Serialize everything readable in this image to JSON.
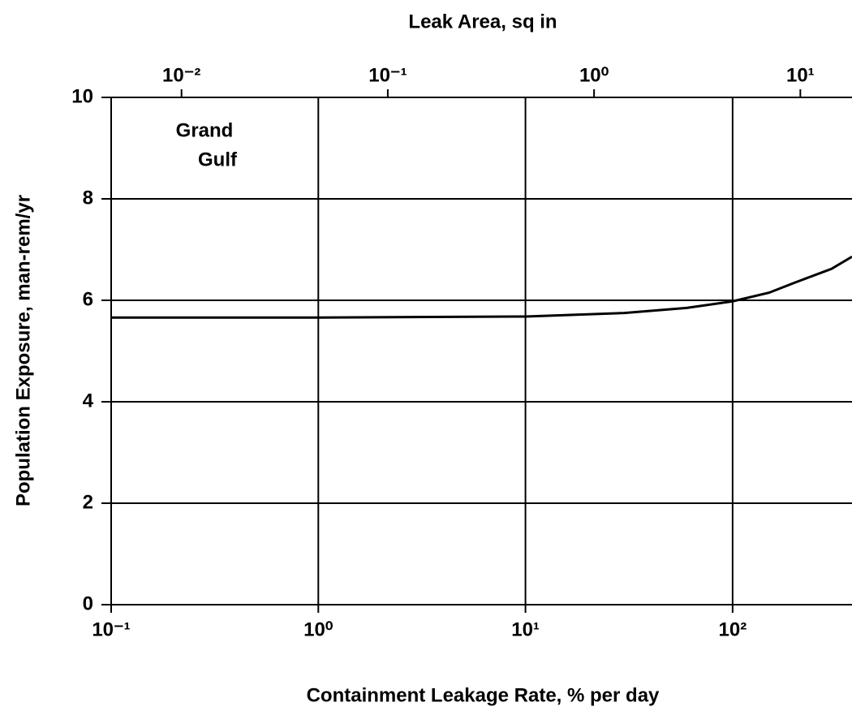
{
  "chart_data": {
    "type": "line",
    "title": "Leak Area, sq in",
    "xlabel": "Containment Leakage Rate, % per day",
    "ylabel": "Population Exposure, man-rem/yr",
    "annotation": [
      "Grand",
      "Gulf"
    ],
    "xscale": "log",
    "x": [
      0.1,
      1,
      10,
      30,
      60,
      100,
      150,
      200,
      300,
      377
    ],
    "series": [
      {
        "color": "#000000",
        "values": [
          5.66,
          5.66,
          5.68,
          5.75,
          5.85,
          5.98,
          6.15,
          6.35,
          6.62,
          6.86
        ]
      }
    ],
    "xlim": [
      0.1,
      377
    ],
    "xticks": [
      {
        "value": 0.1,
        "label": "10⁻¹"
      },
      {
        "value": 1,
        "label": "10⁰"
      },
      {
        "value": 10,
        "label": "10¹"
      },
      {
        "value": 100,
        "label": "10²"
      }
    ],
    "x2lim": [
      0.00456,
      17.8
    ],
    "x2ticks": [
      {
        "value": 0.01,
        "label": "10⁻²"
      },
      {
        "value": 0.1,
        "label": "10⁻¹"
      },
      {
        "value": 1,
        "label": "10⁰"
      },
      {
        "value": 10,
        "label": "10¹"
      }
    ],
    "ylim": [
      0,
      10
    ],
    "yticks": [
      0,
      2,
      4,
      6,
      8,
      10
    ],
    "grid": true
  }
}
